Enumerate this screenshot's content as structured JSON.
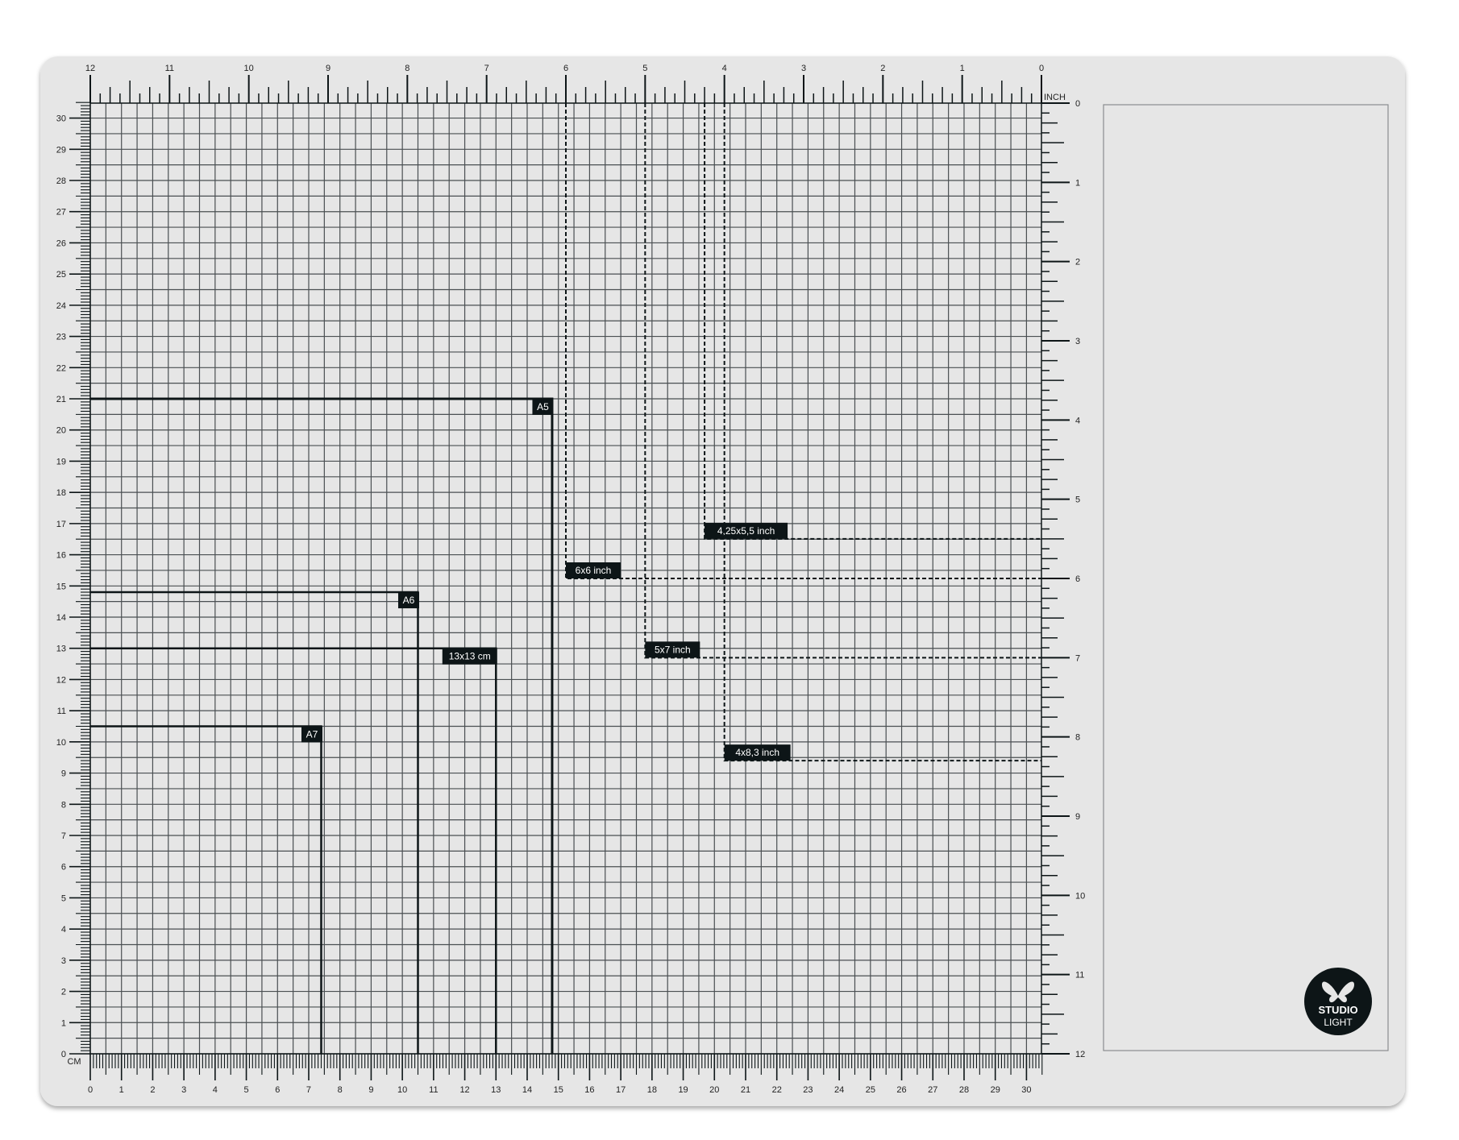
{
  "mat": {
    "background": "#e6e6e6",
    "grid_color": "#4a4f52",
    "ink_color": "#0d1517",
    "inch_unit_label": "INCH",
    "cm_unit_label": "CM",
    "top_inch_labels": [
      "12",
      "11",
      "10",
      "9",
      "8",
      "7",
      "6",
      "5",
      "4",
      "3",
      "2",
      "1",
      "0"
    ],
    "right_inch_labels": [
      "0",
      "1",
      "2",
      "3",
      "4",
      "5",
      "6",
      "7",
      "8",
      "9",
      "10",
      "11",
      "12"
    ],
    "left_cm_labels": [
      "0",
      "1",
      "2",
      "3",
      "4",
      "5",
      "6",
      "7",
      "8",
      "9",
      "10",
      "11",
      "12",
      "13",
      "14",
      "15",
      "16",
      "17",
      "18",
      "19",
      "20",
      "21",
      "22",
      "23",
      "24",
      "25",
      "26",
      "27",
      "28",
      "29",
      "30"
    ],
    "bottom_cm_labels": [
      "0",
      "1",
      "2",
      "3",
      "4",
      "5",
      "6",
      "7",
      "8",
      "9",
      "10",
      "11",
      "12",
      "13",
      "14",
      "15",
      "16",
      "17",
      "18",
      "19",
      "20",
      "21",
      "22",
      "23",
      "24",
      "25",
      "26",
      "27",
      "28",
      "29",
      "30"
    ]
  },
  "cm_templates": [
    {
      "label": "A5",
      "width_cm": 14.8,
      "height_cm": 21
    },
    {
      "label": "A6",
      "width_cm": 10.5,
      "height_cm": 14.8
    },
    {
      "label": "13x13 cm",
      "width_cm": 13,
      "height_cm": 13
    },
    {
      "label": "A7",
      "width_cm": 7.4,
      "height_cm": 10.5
    }
  ],
  "inch_templates": [
    {
      "label": "6x6 inch",
      "width_in": 6,
      "height_in": 6
    },
    {
      "label": "5x7 inch",
      "width_in": 5,
      "height_in": 7
    },
    {
      "label": "4,25x5,5 inch",
      "width_in": 4.25,
      "height_in": 5.5
    },
    {
      "label": "4x8,3 inch",
      "width_in": 4,
      "height_in": 8.3
    }
  ],
  "logo": {
    "line1": "STUDIO",
    "line2": "LIGHT",
    "icon": "butterfly-icon"
  }
}
